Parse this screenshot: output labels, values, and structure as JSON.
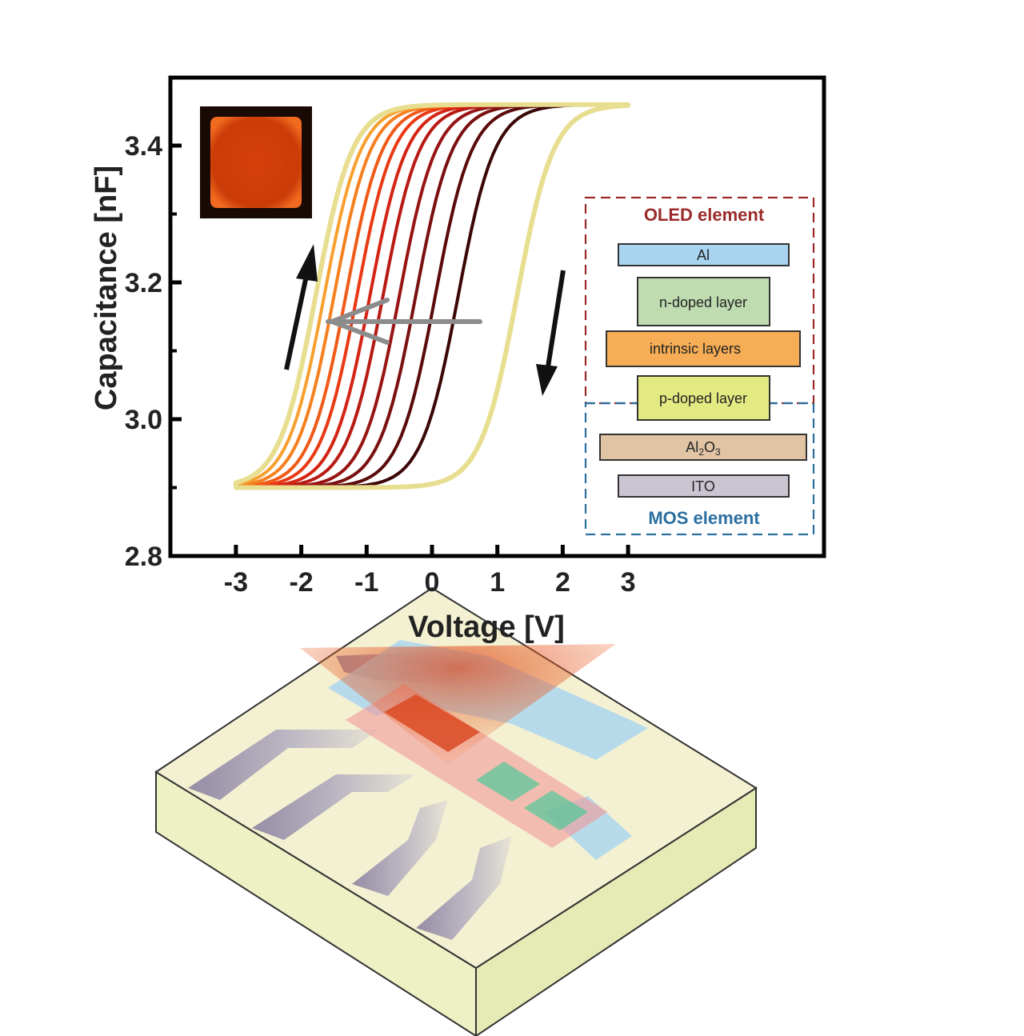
{
  "chart_data": {
    "type": "line",
    "title": "",
    "xlabel": "Voltage [V]",
    "ylabel": "Capacitance [nF]",
    "xlim": [
      -3.3,
      6.0
    ],
    "ylim": [
      2.8,
      3.5
    ],
    "x_ticks": [
      "-3",
      "-2",
      "-1",
      "0",
      "1",
      "2",
      "3"
    ],
    "y_ticks": [
      "2.8",
      "3.0",
      "3.2",
      "3.4"
    ],
    "grid": false,
    "c_min": 2.9,
    "c_max": 3.46,
    "sweep_range": [
      -3,
      3
    ],
    "series": [
      {
        "downsweep_midpoint_v": 1.3,
        "upsweep_midpoint_v": 0.4,
        "color": "#3a0606"
      },
      {
        "downsweep_midpoint_v": 1.3,
        "upsweep_midpoint_v": 0.05,
        "color": "#5a0a0a"
      },
      {
        "downsweep_midpoint_v": 1.3,
        "upsweep_midpoint_v": -0.25,
        "color": "#7a1010"
      },
      {
        "downsweep_midpoint_v": 1.3,
        "upsweep_midpoint_v": -0.5,
        "color": "#981414"
      },
      {
        "downsweep_midpoint_v": 1.3,
        "upsweep_midpoint_v": -0.75,
        "color": "#b81a14"
      },
      {
        "downsweep_midpoint_v": 1.3,
        "upsweep_midpoint_v": -0.95,
        "color": "#d42414"
      },
      {
        "downsweep_midpoint_v": 1.3,
        "upsweep_midpoint_v": -1.15,
        "color": "#e83a14"
      },
      {
        "downsweep_midpoint_v": 1.3,
        "upsweep_midpoint_v": -1.32,
        "color": "#f05a18"
      },
      {
        "downsweep_midpoint_v": 1.3,
        "upsweep_midpoint_v": -1.5,
        "color": "#f58020"
      },
      {
        "downsweep_midpoint_v": 1.3,
        "upsweep_midpoint_v": -1.65,
        "color": "#f7a030"
      },
      {
        "downsweep_midpoint_v": 1.3,
        "upsweep_midpoint_v": -1.78,
        "color": "#e8de90"
      }
    ]
  },
  "legend": {
    "oled_title": "OLED element",
    "mos_title": "MOS element",
    "layers": [
      {
        "label": "Al",
        "color": "#a8d4f0"
      },
      {
        "label": "n-doped layer",
        "color": "#bfdcb0"
      },
      {
        "label": "intrinsic layers",
        "color": "#f6ad55"
      },
      {
        "label": "p-doped layer",
        "color": "#e4ea82"
      },
      {
        "label": "Al",
        "sub1": "2",
        "mid": "O",
        "sub2": "3",
        "color": "#e0c4a4"
      },
      {
        "label": "ITO",
        "color": "#cbc5d2"
      }
    ],
    "oled_color": "#9a2a2a",
    "mos_color": "#2b6fa0"
  },
  "colors": {
    "inset_outer": "#1a0a05",
    "inset_inner": "#d8410a",
    "sweep_arrow": "#111111",
    "shift_arrow": "#8c8c8c",
    "substrate_top": "#f3f0cf",
    "substrate_side": "#eef2c2",
    "contact": "#9c94ae"
  }
}
